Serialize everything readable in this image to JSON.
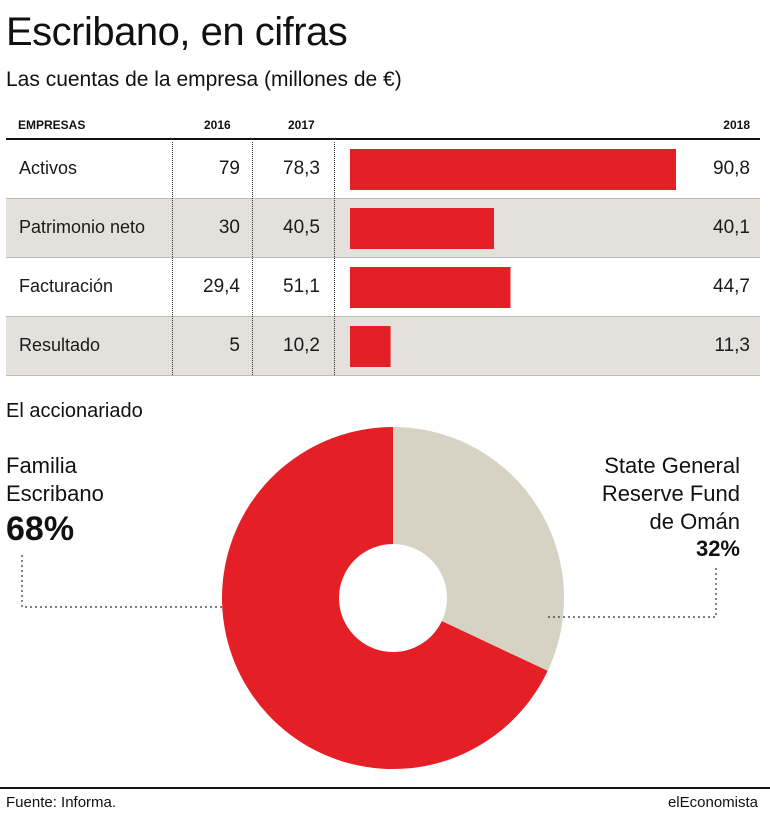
{
  "title": "Escribano, en cifras",
  "subtitle": "Las cuentas de la empresa (millones de €)",
  "table": {
    "headers": [
      "EMPRESAS",
      "2016",
      "2017",
      "2018"
    ]
  },
  "chart_data": [
    {
      "type": "bar",
      "orientation": "horizontal",
      "categories": [
        "Activos",
        "Patrimonio neto",
        "Facturación",
        "Resultado"
      ],
      "series": [
        {
          "name": "2016",
          "values": [
            79,
            30,
            29.4,
            5
          ]
        },
        {
          "name": "2017",
          "values": [
            78.3,
            40.5,
            51.1,
            10.2
          ]
        },
        {
          "name": "2018",
          "values": [
            90.8,
            40.1,
            44.7,
            11.3
          ]
        }
      ],
      "display": {
        "2016": [
          "79",
          "30",
          "29,4",
          "5"
        ],
        "2017": [
          "78,3",
          "40,5",
          "51,1",
          "10,2"
        ],
        "2018": [
          "90,8",
          "40,1",
          "44,7",
          "11,3"
        ]
      },
      "bar_series": "2018",
      "bar_color": "#e41f25",
      "xlim": [
        0,
        90.8
      ]
    },
    {
      "type": "pie",
      "style": "donut",
      "title": "El accionariado",
      "slices": [
        {
          "label": "State General Reserve Fund de Omán",
          "value": 32,
          "display": "32%",
          "color": "#d6d3c4"
        },
        {
          "label": "Familia Escribano",
          "value": 68,
          "display": "68%",
          "color": "#e41f25"
        }
      ]
    }
  ],
  "donut_labels": {
    "left_line1": "Familia",
    "left_line2": "Escribano",
    "left_pct": "68%",
    "right_line1": "State General",
    "right_line2": "Reserve Fund",
    "right_line3": "de Omán",
    "right_pct": "32%"
  },
  "footer": {
    "source": "Fuente: Informa.",
    "brand": "elEconomista"
  },
  "colors": {
    "accent": "#e41f25",
    "secondary": "#d6d3c4",
    "row_shade": "#e4e1dc"
  }
}
